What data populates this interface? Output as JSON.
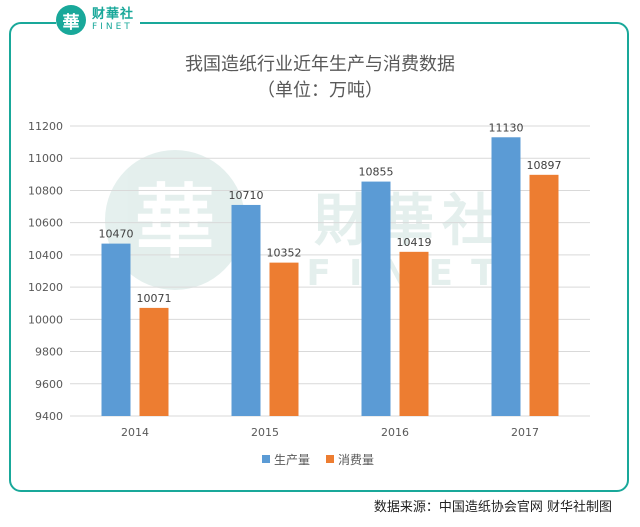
{
  "header": {
    "logo_char": "華",
    "logo_cn": "财華社",
    "logo_en": "FINET"
  },
  "watermark": {
    "char": "華",
    "cn": "財華社",
    "en": "FINET"
  },
  "footer": {
    "source": "数据来源：中国造纸协会官网    财华社制图"
  },
  "chart_data": {
    "type": "bar",
    "title": "我国造纸行业近年生产与消费数据",
    "subtitle": "（单位：万吨）",
    "categories": [
      "2014",
      "2015",
      "2016",
      "2017"
    ],
    "series": [
      {
        "name": "生产量",
        "values": [
          10470,
          10710,
          10855,
          11130
        ],
        "color": "#5b9bd5"
      },
      {
        "name": "消费量",
        "values": [
          10071,
          10352,
          10419,
          10897
        ],
        "color": "#ed7d31"
      }
    ],
    "yticks": [
      9400,
      9600,
      9800,
      10000,
      10200,
      10400,
      10600,
      10800,
      11000,
      11200
    ],
    "ylim": [
      9400,
      11200
    ],
    "grid": true,
    "legend_position": "bottom"
  }
}
